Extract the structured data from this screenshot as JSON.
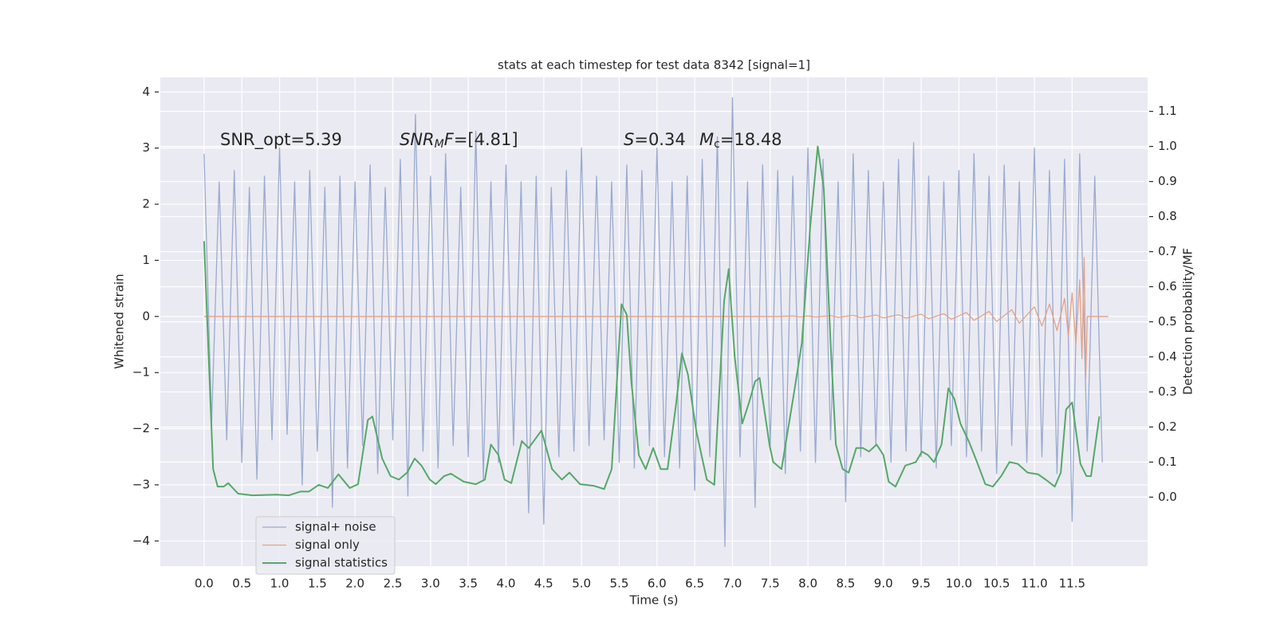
{
  "chart_data": {
    "type": "line",
    "title": "stats at each timestep for test data 8342 [signal=1]",
    "xlabel": "Time (s)",
    "ylabel": "Whitened strain",
    "y2label": "Detection probability/MF",
    "grid": true,
    "legend": "lower left",
    "xlim": [
      -0.58,
      12.5
    ],
    "ylim": [
      -4.45,
      4.26
    ],
    "y2lim": [
      -0.197,
      1.197
    ],
    "xticks": [
      {
        "value": 0,
        "label": "0.0"
      },
      0.5,
      {
        "value": 1,
        "label": "1.0"
      },
      1.5,
      {
        "value": 2,
        "label": "2.0"
      },
      2.5,
      {
        "value": 3,
        "label": "3.0"
      },
      3.5,
      {
        "value": 4,
        "label": "4.0"
      },
      4.5,
      {
        "value": 5,
        "label": "5.0"
      },
      5.5,
      {
        "value": 6,
        "label": "6.0"
      },
      6.5,
      {
        "value": 7,
        "label": "7.0"
      },
      7.5,
      {
        "value": 8,
        "label": "8.0"
      },
      8.5,
      {
        "value": 9,
        "label": "9.0"
      },
      9.5,
      {
        "value": 10,
        "label": "10.0"
      },
      10.5,
      {
        "value": 11,
        "label": "11.0"
      },
      11.5
    ],
    "yticks": [
      {
        "value": -4,
        "label": "−4"
      },
      {
        "value": -3,
        "label": "−3"
      },
      {
        "value": -2,
        "label": "−2"
      },
      {
        "value": -1,
        "label": "−1"
      },
      0,
      1,
      2,
      3,
      4
    ],
    "y2ticks": [
      {
        "value": 0,
        "label": "0.0"
      },
      0.1,
      0.2,
      0.3,
      0.4,
      0.5,
      0.6,
      0.7,
      0.8,
      0.9,
      {
        "value": 1,
        "label": "1.0"
      },
      1.1
    ],
    "series": [
      {
        "name": "signal+ noise",
        "color": "#9aabd0",
        "axis": "y",
        "x": [
          0,
          0.1,
          0.2,
          0.3,
          0.4,
          0.5,
          0.6,
          0.7,
          0.8,
          0.9,
          1,
          1.1,
          1.2,
          1.3,
          1.4,
          1.5,
          1.6,
          1.7,
          1.8,
          1.9,
          2,
          2.1,
          2.2,
          2.3,
          2.4,
          2.5,
          2.6,
          2.7,
          2.8,
          2.9,
          3,
          3.1,
          3.2,
          3.3,
          3.4,
          3.5,
          3.6,
          3.7,
          3.8,
          3.9,
          4,
          4.1,
          4.2,
          4.3,
          4.4,
          4.5,
          4.6,
          4.7,
          4.8,
          4.9,
          5,
          5.1,
          5.2,
          5.3,
          5.4,
          5.5,
          5.6,
          5.7,
          5.8,
          5.9,
          6,
          6.1,
          6.2,
          6.3,
          6.4,
          6.5,
          6.6,
          6.7,
          6.8,
          6.9,
          7,
          7.1,
          7.2,
          7.3,
          7.4,
          7.5,
          7.6,
          7.7,
          7.8,
          7.9,
          8,
          8.1,
          8.2,
          8.3,
          8.4,
          8.5,
          8.6,
          8.7,
          8.8,
          8.9,
          9,
          9.1,
          9.2,
          9.3,
          9.4,
          9.5,
          9.6,
          9.7,
          9.8,
          9.9,
          10,
          10.1,
          10.2,
          10.3,
          10.4,
          10.5,
          10.6,
          10.7,
          10.8,
          10.9,
          11,
          11.1,
          11.2,
          11.3,
          11.4,
          11.5,
          11.6,
          11.7,
          11.8,
          11.9
        ],
        "values": [
          2.9,
          -1.9,
          2.4,
          -2.2,
          2.6,
          -2.6,
          2.3,
          -2.9,
          2.5,
          -2.2,
          3.0,
          -2.1,
          2.4,
          -3.0,
          2.6,
          -2.4,
          2.3,
          -3.4,
          2.5,
          -2.7,
          2.4,
          -2.3,
          2.7,
          -2.8,
          2.3,
          -2.2,
          2.8,
          -3.2,
          3.6,
          -2.4,
          2.5,
          -2.7,
          2.9,
          -2.3,
          2.3,
          -2.5,
          3.3,
          -2.9,
          2.4,
          -2.6,
          2.7,
          -2.3,
          2.4,
          -3.5,
          2.5,
          -3.7,
          2.3,
          -2.5,
          2.6,
          -2.4,
          3.0,
          -2.3,
          2.5,
          -2.2,
          2.4,
          -2.6,
          2.7,
          -2.7,
          2.6,
          -2.3,
          3.0,
          -2.5,
          2.4,
          -2.7,
          2.5,
          -3.1,
          2.8,
          -2.5,
          3.2,
          -4.1,
          3.9,
          -2.5,
          2.4,
          -3.4,
          2.7,
          -2.3,
          2.6,
          -2.8,
          2.5,
          -2.4,
          3.0,
          -2.6,
          2.8,
          -2.2,
          2.4,
          -3.3,
          2.9,
          -2.5,
          2.6,
          -2.3,
          2.4,
          -2.6,
          2.8,
          -2.4,
          3.1,
          -2.5,
          2.5,
          -2.7,
          2.4,
          -2.3,
          2.6,
          -2.5,
          2.9,
          -2.4,
          2.5,
          -2.8,
          2.7,
          -2.3,
          2.4,
          -2.6,
          3.0,
          -2.5,
          2.6,
          -2.8,
          2.8,
          -3.65,
          2.9,
          -2.4,
          2.5,
          -2.6
        ]
      },
      {
        "name": "signal only",
        "color": "#e3a287",
        "axis": "y",
        "x": [
          0,
          7.6,
          7.8,
          7.9,
          8.0,
          8.1,
          8.3,
          8.4,
          8.6,
          8.7,
          8.9,
          9.0,
          9.2,
          9.3,
          9.5,
          9.6,
          9.8,
          9.9,
          10.1,
          10.2,
          10.4,
          10.5,
          10.7,
          10.8,
          11.0,
          11.1,
          11.2,
          11.3,
          11.4,
          11.45,
          11.5,
          11.55,
          11.6,
          11.63,
          11.66,
          11.68,
          11.7,
          11.98
        ],
        "values": [
          0,
          0,
          0.01,
          -0.01,
          0.01,
          -0.01,
          0.015,
          -0.015,
          0.02,
          -0.02,
          0.025,
          -0.025,
          0.03,
          -0.03,
          0.04,
          -0.04,
          0.05,
          -0.05,
          0.07,
          -0.07,
          0.09,
          -0.09,
          0.12,
          -0.12,
          0.17,
          -0.17,
          0.22,
          -0.25,
          0.32,
          -0.35,
          0.42,
          -0.5,
          0.65,
          -0.75,
          1.05,
          -1.1,
          0,
          0
        ]
      },
      {
        "name": "signal statistics",
        "color": "#55a868",
        "axis": "y2",
        "x": [
          0,
          0.12,
          0.18,
          0.26,
          0.32,
          0.45,
          0.64,
          0.96,
          1.12,
          1.28,
          1.39,
          1.52,
          1.64,
          1.78,
          1.93,
          2.04,
          2.17,
          2.23,
          2.36,
          2.47,
          2.58,
          2.69,
          2.79,
          2.88,
          2.99,
          3.07,
          3.18,
          3.27,
          3.44,
          3.6,
          3.72,
          3.8,
          3.9,
          3.98,
          4.07,
          4.21,
          4.3,
          4.47,
          4.61,
          4.74,
          4.84,
          4.98,
          5.17,
          5.3,
          5.4,
          5.53,
          5.6,
          5.66,
          5.76,
          5.85,
          5.95,
          6.05,
          6.14,
          6.25,
          6.33,
          6.41,
          6.52,
          6.66,
          6.76,
          6.89,
          6.95,
          7.03,
          7.13,
          7.22,
          7.3,
          7.36,
          7.49,
          7.54,
          7.65,
          7.81,
          7.92,
          8.03,
          8.13,
          8.21,
          8.3,
          8.37,
          8.46,
          8.54,
          8.64,
          8.73,
          8.81,
          8.91,
          9.0,
          9.07,
          9.16,
          9.29,
          9.43,
          9.51,
          9.59,
          9.67,
          9.77,
          9.86,
          9.94,
          10.02,
          10.13,
          10.24,
          10.35,
          10.45,
          10.56,
          10.67,
          10.78,
          10.91,
          11.05,
          11.15,
          11.27,
          11.35,
          11.42,
          11.5,
          11.61,
          11.69,
          11.75,
          11.86
        ],
        "values": [
          0.73,
          0.08,
          0.03,
          0.03,
          0.04,
          0.01,
          0.005,
          0.007,
          0.005,
          0.016,
          0.016,
          0.035,
          0.026,
          0.065,
          0.026,
          0.037,
          0.22,
          0.23,
          0.11,
          0.06,
          0.05,
          0.07,
          0.11,
          0.09,
          0.05,
          0.037,
          0.06,
          0.067,
          0.044,
          0.037,
          0.05,
          0.15,
          0.12,
          0.05,
          0.04,
          0.16,
          0.14,
          0.19,
          0.08,
          0.05,
          0.07,
          0.037,
          0.032,
          0.023,
          0.08,
          0.55,
          0.52,
          0.33,
          0.12,
          0.08,
          0.14,
          0.08,
          0.08,
          0.26,
          0.41,
          0.35,
          0.19,
          0.05,
          0.035,
          0.56,
          0.65,
          0.4,
          0.21,
          0.27,
          0.33,
          0.34,
          0.15,
          0.1,
          0.08,
          0.29,
          0.44,
          0.77,
          1.0,
          0.88,
          0.44,
          0.15,
          0.08,
          0.07,
          0.14,
          0.14,
          0.13,
          0.15,
          0.12,
          0.044,
          0.03,
          0.09,
          0.1,
          0.13,
          0.12,
          0.1,
          0.15,
          0.31,
          0.28,
          0.21,
          0.16,
          0.1,
          0.037,
          0.03,
          0.06,
          0.1,
          0.095,
          0.07,
          0.065,
          0.05,
          0.03,
          0.07,
          0.25,
          0.27,
          0.095,
          0.06,
          0.06,
          0.23
        ]
      }
    ],
    "annotations": [
      {
        "parts": [
          "SNR_opt=5.39"
        ]
      },
      {
        "parts": [
          "SNR",
          "M",
          "F",
          "=[4.81]"
        ]
      },
      {
        "parts": [
          "S",
          "=0.34"
        ]
      },
      {
        "parts": [
          "M",
          "c",
          "=18.48"
        ]
      }
    ]
  }
}
